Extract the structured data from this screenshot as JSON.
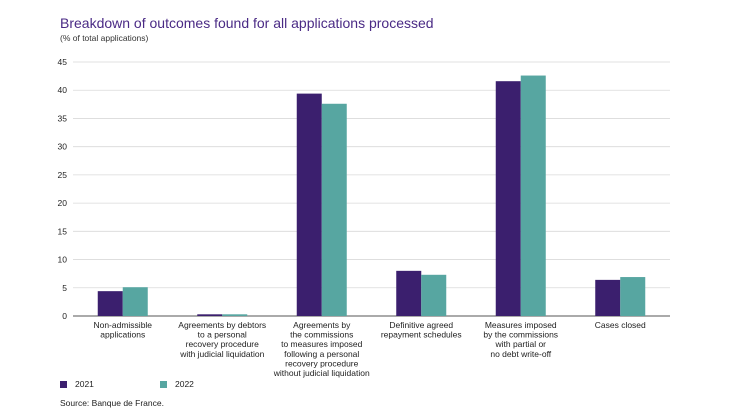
{
  "chart_data": {
    "type": "bar",
    "title": "Breakdown of outcomes found for all applications processed",
    "subtitle": "(% of total applications)",
    "ylim": [
      0,
      45
    ],
    "yticks": [
      0,
      5,
      10,
      15,
      20,
      25,
      30,
      35,
      40,
      45
    ],
    "grid": true,
    "categories": [
      [
        "Non-admissible",
        "applications"
      ],
      [
        "Agreements by debtors",
        "to a personal",
        "recovery procedure",
        "with judicial liquidation"
      ],
      [
        "Agreements by",
        "the commissions",
        "to measures imposed",
        "following a personal",
        "recovery procedure",
        "without judicial liquidation"
      ],
      [
        "Definitive agreed",
        "repayment schedules"
      ],
      [
        "Measures imposed",
        "by the commissions",
        "with partial or",
        "no debt write-off"
      ],
      [
        "Cases closed"
      ]
    ],
    "series": [
      {
        "name": "2021",
        "color": "#3b1f6e",
        "values": [
          4.4,
          0.3,
          39.4,
          8.0,
          41.6,
          6.4
        ]
      },
      {
        "name": "2022",
        "color": "#57a6a1",
        "values": [
          5.1,
          0.3,
          37.6,
          7.3,
          42.6,
          6.9
        ]
      }
    ],
    "source": "Source: Banque de France."
  }
}
